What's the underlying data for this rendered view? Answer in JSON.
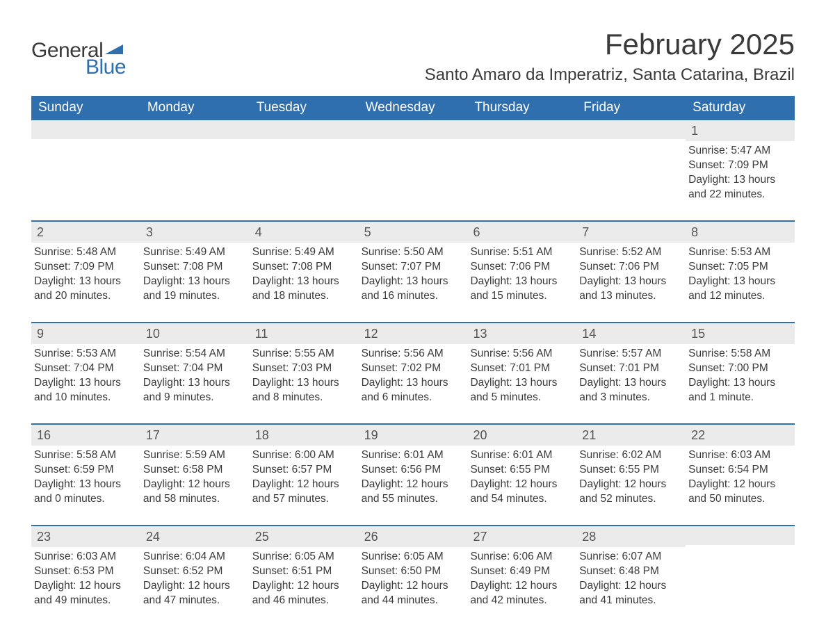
{
  "brand": {
    "general": "General",
    "blue": "Blue",
    "flag_color": "#2f6fad"
  },
  "title": "February 2025",
  "location": "Santo Amaro da Imperatriz, Santa Catarina, Brazil",
  "colors": {
    "header_bg": "#2f6fad",
    "header_text": "#ffffff",
    "daynum_bg": "#ebebeb",
    "rule": "#2f6fad",
    "text": "#3a3a3a",
    "page_bg": "#ffffff"
  },
  "weekdays": [
    "Sunday",
    "Monday",
    "Tuesday",
    "Wednesday",
    "Thursday",
    "Friday",
    "Saturday"
  ],
  "weeks": [
    [
      null,
      null,
      null,
      null,
      null,
      null,
      {
        "n": "1",
        "sunrise": "Sunrise: 5:47 AM",
        "sunset": "Sunset: 7:09 PM",
        "day1": "Daylight: 13 hours",
        "day2": "and 22 minutes."
      }
    ],
    [
      {
        "n": "2",
        "sunrise": "Sunrise: 5:48 AM",
        "sunset": "Sunset: 7:09 PM",
        "day1": "Daylight: 13 hours",
        "day2": "and 20 minutes."
      },
      {
        "n": "3",
        "sunrise": "Sunrise: 5:49 AM",
        "sunset": "Sunset: 7:08 PM",
        "day1": "Daylight: 13 hours",
        "day2": "and 19 minutes."
      },
      {
        "n": "4",
        "sunrise": "Sunrise: 5:49 AM",
        "sunset": "Sunset: 7:08 PM",
        "day1": "Daylight: 13 hours",
        "day2": "and 18 minutes."
      },
      {
        "n": "5",
        "sunrise": "Sunrise: 5:50 AM",
        "sunset": "Sunset: 7:07 PM",
        "day1": "Daylight: 13 hours",
        "day2": "and 16 minutes."
      },
      {
        "n": "6",
        "sunrise": "Sunrise: 5:51 AM",
        "sunset": "Sunset: 7:06 PM",
        "day1": "Daylight: 13 hours",
        "day2": "and 15 minutes."
      },
      {
        "n": "7",
        "sunrise": "Sunrise: 5:52 AM",
        "sunset": "Sunset: 7:06 PM",
        "day1": "Daylight: 13 hours",
        "day2": "and 13 minutes."
      },
      {
        "n": "8",
        "sunrise": "Sunrise: 5:53 AM",
        "sunset": "Sunset: 7:05 PM",
        "day1": "Daylight: 13 hours",
        "day2": "and 12 minutes."
      }
    ],
    [
      {
        "n": "9",
        "sunrise": "Sunrise: 5:53 AM",
        "sunset": "Sunset: 7:04 PM",
        "day1": "Daylight: 13 hours",
        "day2": "and 10 minutes."
      },
      {
        "n": "10",
        "sunrise": "Sunrise: 5:54 AM",
        "sunset": "Sunset: 7:04 PM",
        "day1": "Daylight: 13 hours",
        "day2": "and 9 minutes."
      },
      {
        "n": "11",
        "sunrise": "Sunrise: 5:55 AM",
        "sunset": "Sunset: 7:03 PM",
        "day1": "Daylight: 13 hours",
        "day2": "and 8 minutes."
      },
      {
        "n": "12",
        "sunrise": "Sunrise: 5:56 AM",
        "sunset": "Sunset: 7:02 PM",
        "day1": "Daylight: 13 hours",
        "day2": "and 6 minutes."
      },
      {
        "n": "13",
        "sunrise": "Sunrise: 5:56 AM",
        "sunset": "Sunset: 7:01 PM",
        "day1": "Daylight: 13 hours",
        "day2": "and 5 minutes."
      },
      {
        "n": "14",
        "sunrise": "Sunrise: 5:57 AM",
        "sunset": "Sunset: 7:01 PM",
        "day1": "Daylight: 13 hours",
        "day2": "and 3 minutes."
      },
      {
        "n": "15",
        "sunrise": "Sunrise: 5:58 AM",
        "sunset": "Sunset: 7:00 PM",
        "day1": "Daylight: 13 hours",
        "day2": "and 1 minute."
      }
    ],
    [
      {
        "n": "16",
        "sunrise": "Sunrise: 5:58 AM",
        "sunset": "Sunset: 6:59 PM",
        "day1": "Daylight: 13 hours",
        "day2": "and 0 minutes."
      },
      {
        "n": "17",
        "sunrise": "Sunrise: 5:59 AM",
        "sunset": "Sunset: 6:58 PM",
        "day1": "Daylight: 12 hours",
        "day2": "and 58 minutes."
      },
      {
        "n": "18",
        "sunrise": "Sunrise: 6:00 AM",
        "sunset": "Sunset: 6:57 PM",
        "day1": "Daylight: 12 hours",
        "day2": "and 57 minutes."
      },
      {
        "n": "19",
        "sunrise": "Sunrise: 6:01 AM",
        "sunset": "Sunset: 6:56 PM",
        "day1": "Daylight: 12 hours",
        "day2": "and 55 minutes."
      },
      {
        "n": "20",
        "sunrise": "Sunrise: 6:01 AM",
        "sunset": "Sunset: 6:55 PM",
        "day1": "Daylight: 12 hours",
        "day2": "and 54 minutes."
      },
      {
        "n": "21",
        "sunrise": "Sunrise: 6:02 AM",
        "sunset": "Sunset: 6:55 PM",
        "day1": "Daylight: 12 hours",
        "day2": "and 52 minutes."
      },
      {
        "n": "22",
        "sunrise": "Sunrise: 6:03 AM",
        "sunset": "Sunset: 6:54 PM",
        "day1": "Daylight: 12 hours",
        "day2": "and 50 minutes."
      }
    ],
    [
      {
        "n": "23",
        "sunrise": "Sunrise: 6:03 AM",
        "sunset": "Sunset: 6:53 PM",
        "day1": "Daylight: 12 hours",
        "day2": "and 49 minutes."
      },
      {
        "n": "24",
        "sunrise": "Sunrise: 6:04 AM",
        "sunset": "Sunset: 6:52 PM",
        "day1": "Daylight: 12 hours",
        "day2": "and 47 minutes."
      },
      {
        "n": "25",
        "sunrise": "Sunrise: 6:05 AM",
        "sunset": "Sunset: 6:51 PM",
        "day1": "Daylight: 12 hours",
        "day2": "and 46 minutes."
      },
      {
        "n": "26",
        "sunrise": "Sunrise: 6:05 AM",
        "sunset": "Sunset: 6:50 PM",
        "day1": "Daylight: 12 hours",
        "day2": "and 44 minutes."
      },
      {
        "n": "27",
        "sunrise": "Sunrise: 6:06 AM",
        "sunset": "Sunset: 6:49 PM",
        "day1": "Daylight: 12 hours",
        "day2": "and 42 minutes."
      },
      {
        "n": "28",
        "sunrise": "Sunrise: 6:07 AM",
        "sunset": "Sunset: 6:48 PM",
        "day1": "Daylight: 12 hours",
        "day2": "and 41 minutes."
      },
      null
    ]
  ]
}
